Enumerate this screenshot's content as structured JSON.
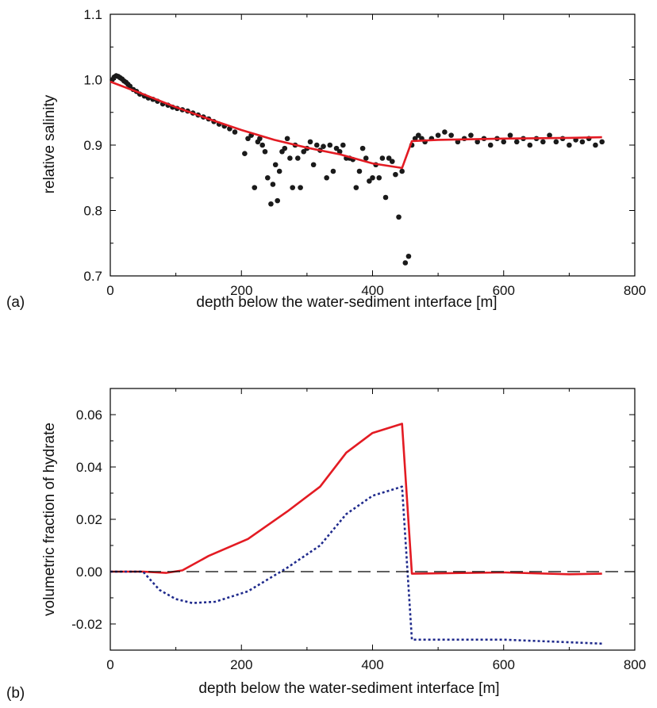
{
  "chart_data": [
    {
      "type": "scatter",
      "panel_label": "(a)",
      "xlabel": "depth below the water-sediment interface [m]",
      "ylabel": "relative salinity",
      "xlim": [
        0,
        800
      ],
      "ylim": [
        0.7,
        1.1
      ],
      "xticks": [
        0,
        200,
        400,
        600,
        800
      ],
      "yticks": [
        0.7,
        0.8,
        0.9,
        1.0,
        1.1
      ],
      "xtick_labels": [
        "0",
        "200",
        "400",
        "600",
        "800"
      ],
      "ytick_labels": [
        "0.7",
        "0.8",
        "0.9",
        "1.0",
        "1.1"
      ],
      "colors": {
        "points": "#1a1a1a",
        "line": "#e31b23"
      },
      "series": [
        {
          "style": "points",
          "x": [
            3,
            6,
            9,
            12,
            15,
            18,
            21,
            24,
            27,
            30,
            35,
            40,
            45,
            52,
            58,
            65,
            72,
            80,
            88,
            95,
            102,
            110,
            118,
            126,
            134,
            142,
            150,
            158,
            166,
            174,
            182,
            190,
            205,
            210,
            215,
            220,
            225,
            228,
            232,
            236,
            240,
            245,
            248,
            252,
            255,
            258,
            262,
            266,
            270,
            274,
            278,
            282,
            286,
            290,
            295,
            300,
            305,
            310,
            315,
            320,
            325,
            330,
            335,
            340,
            345,
            350,
            355,
            360,
            365,
            370,
            375,
            380,
            385,
            390,
            395,
            400,
            405,
            410,
            415,
            420,
            425,
            430,
            435,
            440,
            445,
            450,
            455,
            460,
            465,
            470,
            475,
            480,
            490,
            500,
            510,
            520,
            530,
            540,
            550,
            560,
            570,
            580,
            590,
            600,
            610,
            620,
            630,
            640,
            650,
            660,
            670,
            680,
            690,
            700,
            710,
            720,
            730,
            740,
            750
          ],
          "y": [
            1.0,
            1.004,
            1.006,
            1.005,
            1.003,
            1.001,
            0.998,
            0.996,
            0.993,
            0.99,
            0.985,
            0.982,
            0.978,
            0.975,
            0.972,
            0.97,
            0.967,
            0.963,
            0.961,
            0.958,
            0.956,
            0.954,
            0.952,
            0.949,
            0.946,
            0.943,
            0.94,
            0.936,
            0.932,
            0.929,
            0.925,
            0.92,
            0.887,
            0.91,
            0.915,
            0.835,
            0.905,
            0.91,
            0.9,
            0.89,
            0.85,
            0.81,
            0.84,
            0.87,
            0.815,
            0.86,
            0.89,
            0.895,
            0.91,
            0.88,
            0.835,
            0.9,
            0.88,
            0.835,
            0.89,
            0.895,
            0.905,
            0.87,
            0.9,
            0.892,
            0.898,
            0.85,
            0.9,
            0.86,
            0.895,
            0.89,
            0.9,
            0.88,
            0.88,
            0.878,
            0.835,
            0.86,
            0.895,
            0.88,
            0.845,
            0.85,
            0.87,
            0.85,
            0.88,
            0.82,
            0.88,
            0.875,
            0.855,
            0.79,
            0.86,
            0.72,
            0.73,
            0.9,
            0.91,
            0.915,
            0.91,
            0.905,
            0.91,
            0.915,
            0.92,
            0.915,
            0.905,
            0.91,
            0.915,
            0.905,
            0.91,
            0.9,
            0.91,
            0.905,
            0.915,
            0.905,
            0.91,
            0.9,
            0.91,
            0.905,
            0.915,
            0.905,
            0.91,
            0.9,
            0.908,
            0.905,
            0.91,
            0.9,
            0.905
          ]
        },
        {
          "style": "line",
          "x": [
            0,
            50,
            100,
            150,
            200,
            250,
            300,
            350,
            400,
            445,
            460,
            500,
            600,
            700,
            750
          ],
          "y": [
            0.997,
            0.978,
            0.958,
            0.94,
            0.923,
            0.908,
            0.896,
            0.886,
            0.872,
            0.865,
            0.906,
            0.908,
            0.91,
            0.911,
            0.912
          ]
        }
      ]
    },
    {
      "type": "line",
      "panel_label": "(b)",
      "xlabel": "depth below the water-sediment interface [m]",
      "ylabel": "volumetric fraction of hydrate",
      "xlim": [
        0,
        800
      ],
      "ylim": [
        -0.03,
        0.07
      ],
      "xticks": [
        0,
        200,
        400,
        600,
        800
      ],
      "yticks": [
        -0.02,
        0.0,
        0.02,
        0.04,
        0.06
      ],
      "xtick_labels": [
        "0",
        "200",
        "400",
        "600",
        "800"
      ],
      "ytick_labels": [
        "-0.02",
        "0.00",
        "0.02",
        "0.04",
        "0.06"
      ],
      "colors": {
        "solid": "#e31b23",
        "dotted": "#1f2a8c",
        "zero": "#000000"
      },
      "series": [
        {
          "style": "solid",
          "x": [
            0,
            50,
            85,
            110,
            150,
            210,
            270,
            320,
            360,
            400,
            445,
            460,
            600,
            700,
            750
          ],
          "y": [
            0.0,
            0.0,
            -0.0005,
            0.0005,
            0.006,
            0.0125,
            0.023,
            0.0325,
            0.0455,
            0.053,
            0.0565,
            -0.0008,
            -0.0003,
            -0.001,
            -0.0008
          ]
        },
        {
          "style": "dotted",
          "x": [
            0,
            50,
            75,
            100,
            125,
            160,
            210,
            270,
            320,
            360,
            400,
            445,
            460,
            500,
            600,
            700,
            750
          ],
          "y": [
            0.0,
            0.0,
            -0.007,
            -0.0105,
            -0.012,
            -0.0115,
            -0.0075,
            0.0015,
            0.01,
            0.022,
            0.029,
            0.0325,
            -0.026,
            -0.026,
            -0.026,
            -0.027,
            -0.0275
          ]
        },
        {
          "style": "dashed",
          "x": [
            0,
            800
          ],
          "y": [
            0.0,
            0.0
          ]
        }
      ]
    }
  ]
}
